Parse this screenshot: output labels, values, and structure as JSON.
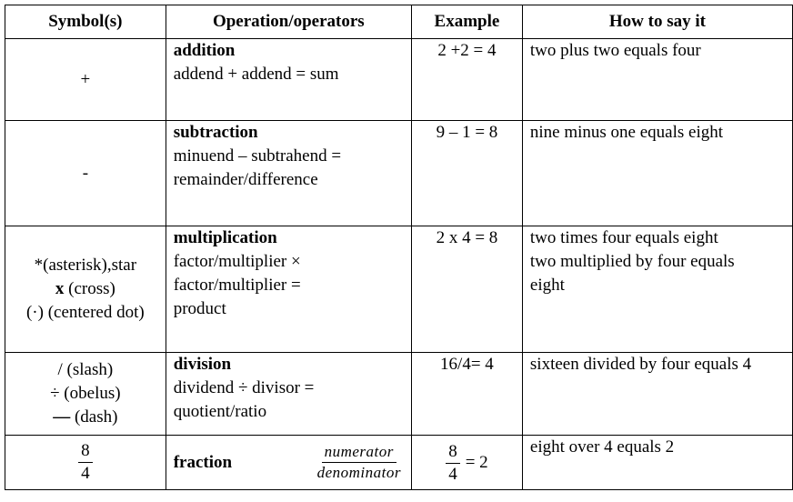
{
  "headers": [
    "Symbol(s)",
    "Operation/operators",
    "Example",
    "How to say it"
  ],
  "rows": [
    {
      "symbols": [
        "+"
      ],
      "op_name": "addition",
      "op_desc": [
        "addend + addend = sum"
      ],
      "example": "2 +2 = 4",
      "say": [
        "two plus two equals four"
      ]
    },
    {
      "symbols": [
        "-"
      ],
      "op_name": "subtraction",
      "op_desc": [
        "minuend – subtrahend =",
        "remainder/difference"
      ],
      "example": "9 – 1 = 8",
      "say": [
        "nine minus one equals eight"
      ]
    },
    {
      "symbols": [
        "*(asterisk),star",
        "(cross)",
        "(·) (centered dot)"
      ],
      "symbol_bold_prefix": "x",
      "op_name": "multiplication",
      "op_desc": [
        "factor/multiplier ×",
        "factor/multiplier =",
        "product"
      ],
      "example": "2 x 4 = 8",
      "say": [
        "two times four equals eight",
        "two multiplied by four equals",
        "eight"
      ]
    },
    {
      "symbols": [
        "/ (slash)",
        "÷ (obelus)",
        "(dash)"
      ],
      "symbol_bold_prefix": "—",
      "op_name": "division",
      "op_desc": [
        "dividend ÷ divisor =",
        "quotient/ratio"
      ],
      "example": "16/4= 4",
      "say": [
        "sixteen divided by four equals 4"
      ]
    },
    {
      "symbol_fraction": {
        "num": "8",
        "den": "4"
      },
      "op_name": "fraction",
      "op_fraction": {
        "num": "numerator",
        "den": "denominator"
      },
      "example_fraction": {
        "num": "8",
        "den": "4",
        "result": "= 2"
      },
      "say": [
        "eight over 4 equals 2"
      ]
    }
  ]
}
